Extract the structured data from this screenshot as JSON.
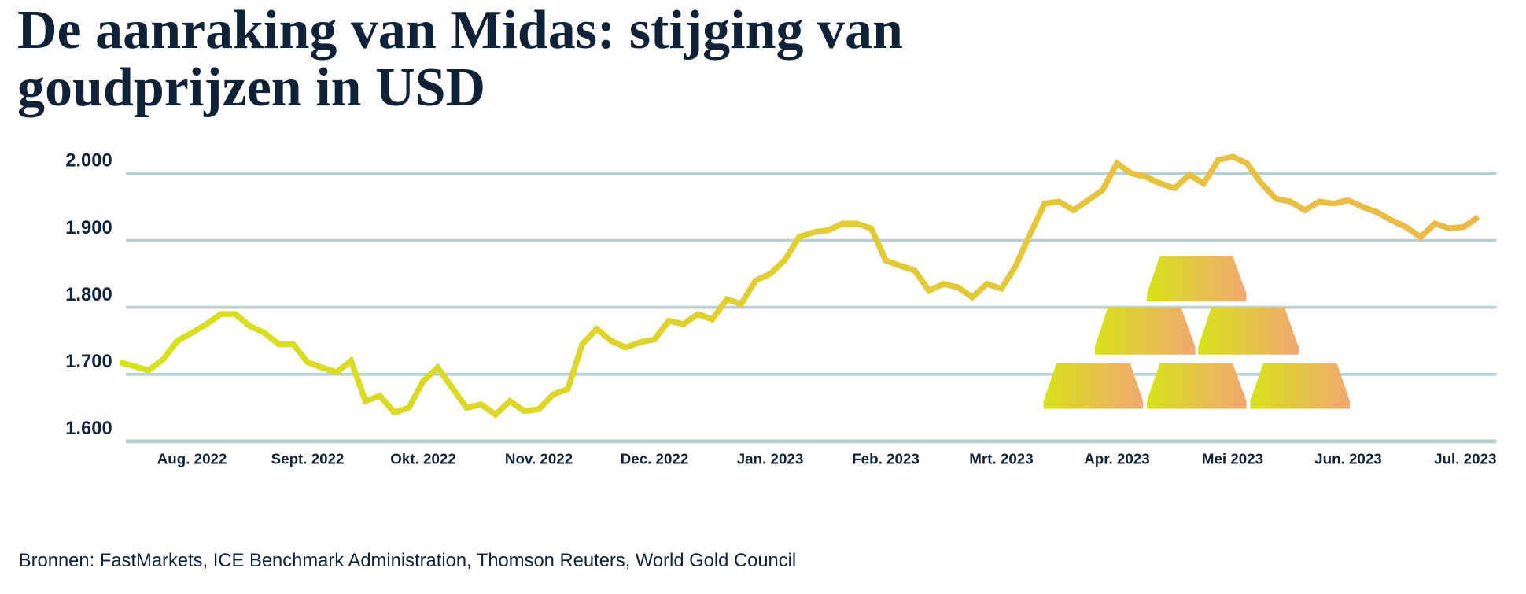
{
  "chart_data": {
    "type": "line",
    "title": "De aanraking van Midas: stijging van goudprijzen in USD",
    "source": "Bronnen: FastMarkets, ICE Benchmark Administration, Thomson Reuters, World Gold Council",
    "categories": [
      null,
      null,
      null,
      null,
      null,
      "Aug. 2022",
      null,
      null,
      null,
      null,
      null,
      null,
      null,
      "Sept. 2022",
      null,
      null,
      null,
      null,
      null,
      null,
      null,
      "Okt. 2022",
      null,
      null,
      null,
      null,
      null,
      null,
      null,
      "Nov. 2022",
      null,
      null,
      null,
      null,
      null,
      null,
      null,
      "Dec. 2022",
      null,
      null,
      null,
      null,
      null,
      null,
      null,
      "Jan. 2023",
      null,
      null,
      null,
      null,
      null,
      null,
      null,
      "Feb. 2023",
      null,
      null,
      null,
      null,
      null,
      null,
      null,
      "Mrt. 2023",
      null,
      null,
      null,
      null,
      null,
      null,
      null,
      "Apr. 2023",
      null,
      null,
      null,
      null,
      null,
      null,
      null,
      "Mei 2023",
      null,
      null,
      null,
      null,
      null,
      null,
      null,
      "Jun. 2023",
      null,
      null,
      null,
      null,
      null,
      null,
      null,
      "Jul. 2023",
      null
    ],
    "values": [
      1718,
      1712,
      1706,
      1722,
      1750,
      1762,
      1775,
      1790,
      1790,
      1772,
      1762,
      1745,
      1745,
      1718,
      1710,
      1703,
      1720,
      1660,
      1668,
      1643,
      1650,
      1690,
      1710,
      1680,
      1650,
      1655,
      1640,
      1660,
      1645,
      1648,
      1670,
      1678,
      1745,
      1768,
      1750,
      1740,
      1748,
      1752,
      1780,
      1775,
      1790,
      1782,
      1812,
      1805,
      1840,
      1850,
      1870,
      1905,
      1912,
      1915,
      1925,
      1925,
      1918,
      1870,
      1862,
      1855,
      1825,
      1835,
      1830,
      1815,
      1835,
      1828,
      1862,
      1910,
      1955,
      1958,
      1945,
      1960,
      1975,
      2015,
      2000,
      1995,
      1985,
      1978,
      1998,
      1985,
      2020,
      2025,
      2015,
      1985,
      1962,
      1958,
      1945,
      1958,
      1955,
      1960,
      1950,
      1942,
      1930,
      1920,
      1905,
      1925,
      1918,
      1920,
      1935
    ],
    "color": [
      "#d6e21c",
      "#ebb94a"
    ],
    "ylim": [
      1600,
      2000
    ],
    "yticks": [
      {
        "value": 1600,
        "label": "1.600"
      },
      {
        "value": 1700,
        "label": "1.700"
      },
      {
        "value": 1800,
        "label": "1.800"
      },
      {
        "value": 1900,
        "label": "1.900"
      },
      {
        "value": 2000,
        "label": "2.000"
      }
    ],
    "grid": true
  }
}
